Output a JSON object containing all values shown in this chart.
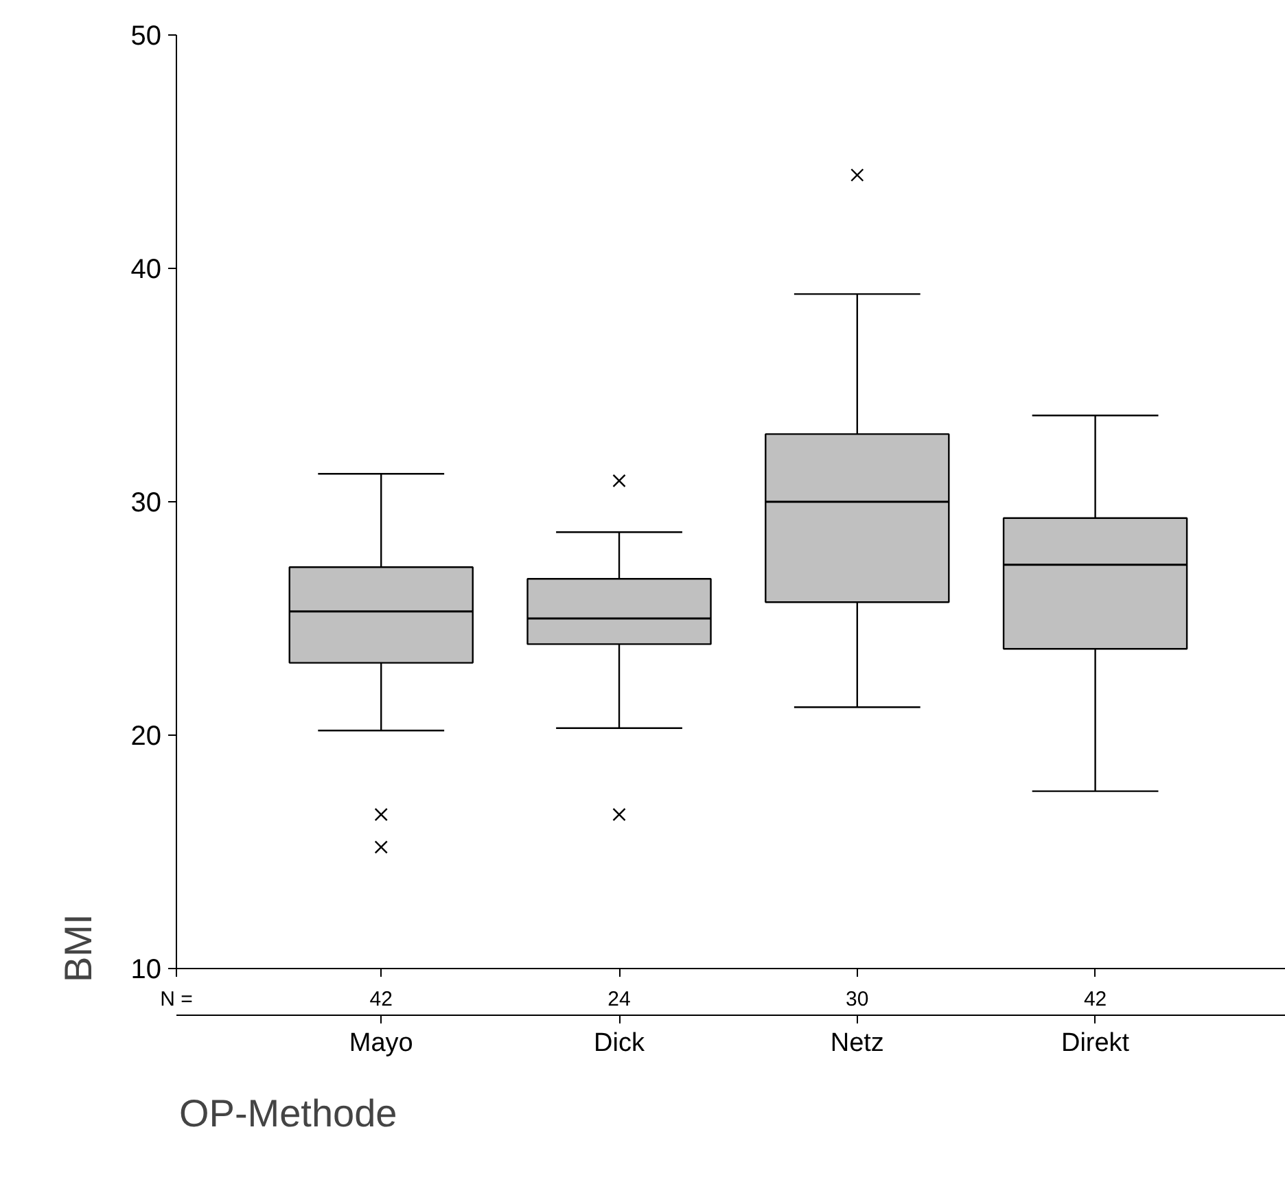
{
  "chart_data": {
    "type": "box",
    "xlabel": "OP-Methode",
    "ylabel": "BMI",
    "categories": [
      "Mayo",
      "Dick",
      "Netz",
      "Direkt"
    ],
    "boxes": [
      {
        "low": 20.2,
        "q1": 23.1,
        "median": 25.3,
        "q3": 27.2,
        "high": 31.2,
        "outliers": [
          16.6,
          15.2
        ]
      },
      {
        "low": 20.3,
        "q1": 23.9,
        "median": 25.0,
        "q3": 26.7,
        "high": 28.7,
        "outliers": [
          30.9,
          16.6
        ]
      },
      {
        "low": 21.2,
        "q1": 25.7,
        "median": 30.0,
        "q3": 32.9,
        "high": 38.9,
        "outliers": [
          44.0
        ]
      },
      {
        "low": 17.6,
        "q1": 23.7,
        "median": 27.3,
        "q3": 29.3,
        "high": 33.7
      }
    ],
    "color": "#c0c0c0",
    "ylim": [
      10,
      50
    ],
    "yticks": [
      10,
      20,
      30,
      40,
      50
    ],
    "grid": false,
    "annotations": [
      "N =",
      "42",
      "24",
      "30",
      "42"
    ]
  }
}
